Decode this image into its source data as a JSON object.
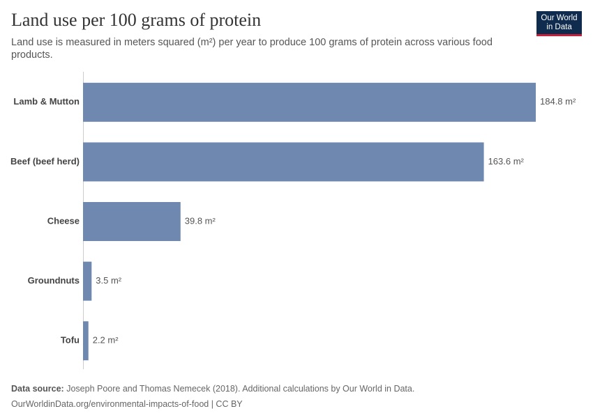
{
  "chart_data": {
    "type": "bar",
    "orientation": "horizontal",
    "title": "Land use per 100 grams of protein",
    "subtitle": "Land use is measured in meters squared (m²) per year to produce 100 grams of protein across various food products.",
    "categories": [
      "Lamb & Mutton",
      "Beef (beef herd)",
      "Cheese",
      "Groundnuts",
      "Tofu"
    ],
    "values": [
      184.8,
      163.6,
      39.8,
      3.5,
      2.2
    ],
    "value_labels": [
      "184.8 m²",
      "163.6 m²",
      "39.8 m²",
      "3.5 m²",
      "2.2 m²"
    ],
    "color": "#6f88b0",
    "source_label": "Data source:",
    "source": "Joseph Poore and Thomas Nemecek (2018). Additional calculations by Our World in Data.",
    "url": "OurWorldinData.org/environmental-impacts-of-food | CC BY",
    "logo": [
      "Our World",
      "in Data"
    ]
  }
}
